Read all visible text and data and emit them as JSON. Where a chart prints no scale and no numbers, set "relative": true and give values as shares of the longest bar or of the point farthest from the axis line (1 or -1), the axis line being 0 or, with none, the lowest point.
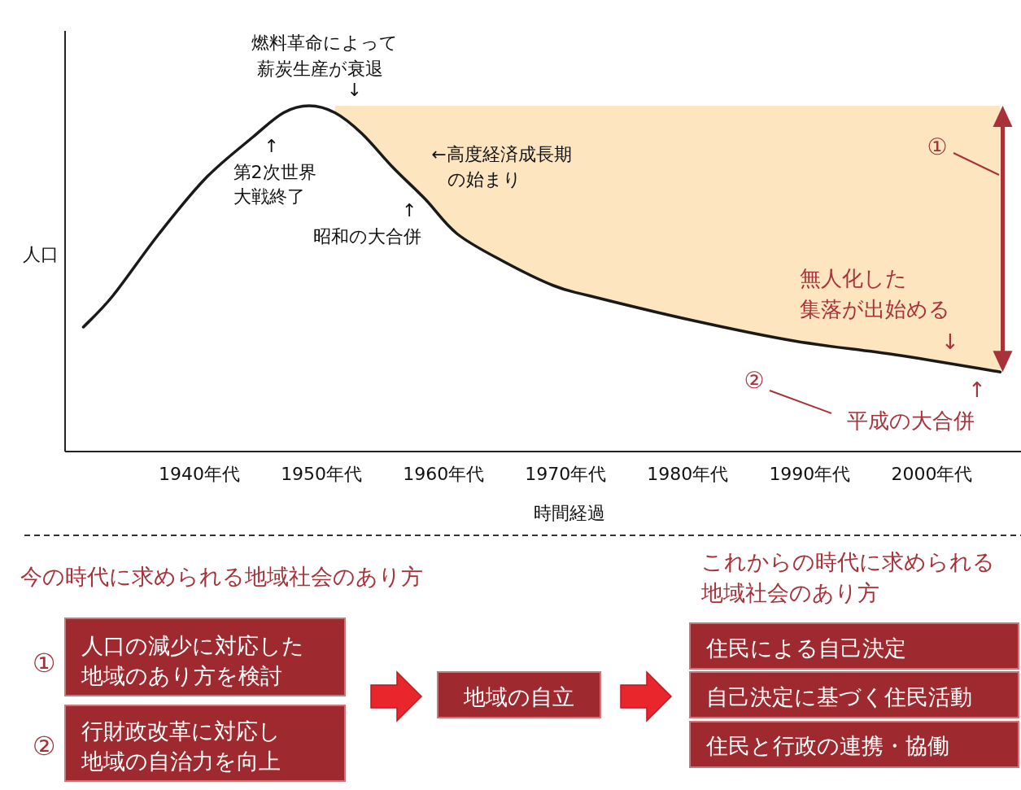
{
  "chart_data": [
    {
      "type": "line",
      "relative": true,
      "ylabel": "人口",
      "xlabel": "時間経過",
      "x": [
        1930.5,
        1932.9,
        1936.7,
        1940.5,
        1944.4,
        1946.9,
        1949.0,
        1951.1,
        1953.3,
        1955.9,
        1958.5,
        1961.1,
        1964.9,
        1969.0,
        1972.0,
        1980.3,
        1988.7,
        1997.0,
        2005.6
      ],
      "series": [
        {
          "color": "#1a1a1a",
          "values": [
            0.36,
            0.45,
            0.63,
            0.79,
            0.91,
            0.98,
            1.0,
            0.98,
            0.92,
            0.82,
            0.73,
            0.63,
            0.55,
            0.48,
            0.45,
            0.38,
            0.32,
            0.28,
            0.23
          ],
          "lower": [
            null,
            null,
            null,
            null,
            null,
            null,
            null,
            0.98,
            0.92,
            0.82,
            0.73,
            0.63,
            0.55,
            0.48,
            0.45,
            0.38,
            0.32,
            0.28,
            0.23
          ],
          "upper": [
            null,
            null,
            null,
            null,
            null,
            null,
            null,
            1,
            1,
            1,
            1,
            1,
            1,
            1,
            1,
            1,
            1,
            1,
            1
          ]
        }
      ],
      "xlim": [
        1929,
        2007.3
      ],
      "xticks": [
        {
          "value": 1940,
          "label": "1940年代"
        },
        {
          "value": 1950,
          "label": "1950年代"
        },
        {
          "value": 1960,
          "label": "1960年代"
        },
        {
          "value": 1970,
          "label": "1970年代"
        },
        {
          "value": 1980,
          "label": "1980年代"
        },
        {
          "value": 1990,
          "label": "1990年代"
        },
        {
          "value": 2000,
          "label": "2000年代"
        }
      ],
      "annotations": [
        {
          "text": "燃料革命によって薪炭生産が衰退↓",
          "x": 1952.7,
          "y": 1
        },
        {
          "text": "↑第2次世界大戦終了",
          "x": 1945.9,
          "y": 0.95
        },
        {
          "text": "←高度経済成長期の始まり",
          "x": 1955,
          "y": 0.85
        },
        {
          "text": "↑昭和の大合併",
          "x": 1957.2,
          "y": 0.78
        },
        {
          "text": "無人化した集落が出始める↓",
          "x": 2001.5,
          "y": 0.25
        },
        {
          "text": "↑平成の大合併",
          "x": 2003.7,
          "y": 0.24
        },
        "①",
        "②"
      ]
    },
    {
      "type": "other",
      "title": "今の時代に求められる地域社会のあり方",
      "subtitle": "これからの時代に求められる地域社会のあり方",
      "annotations": [
        "①",
        "人口の減少に対応した地域のあり方を検討",
        "②",
        "行財政改革に対応し地域の自治力を向上",
        "地域の自立",
        "住民による自己決定",
        "自己決定に基づく住民活動",
        "住民と行政の連携・協働"
      ]
    }
  ]
}
